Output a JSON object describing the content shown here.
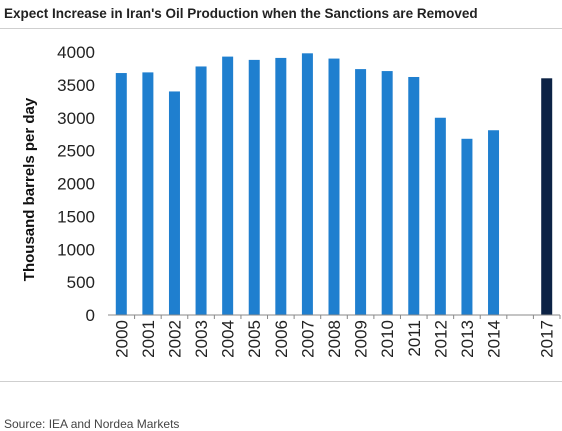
{
  "title": "Expect Increase in Iran's Oil Production when the Sanctions are Removed",
  "source": "Source: IEA and Nordea Markets",
  "chart_data": {
    "type": "bar",
    "ylabel": "Thousand barrels per day",
    "xlabel": "",
    "ylim": [
      0,
      4000
    ],
    "yticks": [
      0,
      500,
      1000,
      1500,
      2000,
      2500,
      3000,
      3500,
      4000
    ],
    "categories": [
      "2000",
      "2001",
      "2002",
      "2003",
      "2004",
      "2005",
      "2006",
      "2007",
      "2008",
      "2009",
      "2010",
      "2011",
      "2012",
      "2013",
      "2014",
      "",
      "2017"
    ],
    "values": [
      3680,
      3690,
      3400,
      3780,
      3930,
      3880,
      3910,
      3980,
      3900,
      3740,
      3710,
      3620,
      3000,
      2680,
      2810,
      null,
      3600
    ],
    "grid": false,
    "colors": {
      "bar": "#1f7fcf",
      "highlight": "#0c2245"
    },
    "highlight_category": "2017"
  }
}
